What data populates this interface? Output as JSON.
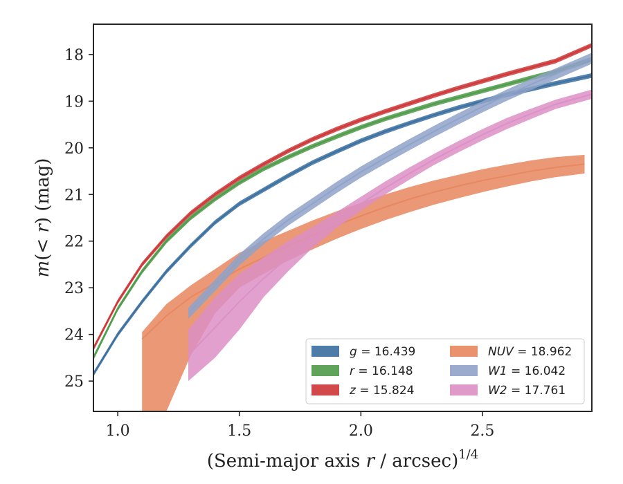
{
  "chart_data": {
    "type": "area",
    "title": "",
    "xlabel": "(Semi-major axis r / arcsec)",
    "xlabel_parts": {
      "pre": "(Semi-major axis ",
      "var": "r",
      "post": " / arcsec)",
      "sup": "1/4"
    },
    "ylabel": "m(<r) (mag)",
    "ylabel_parts": {
      "var": "m",
      "inner": "(< ",
      "inner_var": "r",
      "post": ") (mag)"
    },
    "xlim": [
      0.9,
      2.95
    ],
    "ylim": [
      25.65,
      17.35
    ],
    "y_inverted": true,
    "x_ticks": [
      1.0,
      1.5,
      2.0,
      2.5
    ],
    "x_tick_labels": [
      "1.0",
      "1.5",
      "2.0",
      "2.5"
    ],
    "y_ticks": [
      18,
      19,
      20,
      21,
      22,
      23,
      24,
      25
    ],
    "y_tick_labels": [
      "18",
      "19",
      "20",
      "21",
      "22",
      "23",
      "24",
      "25"
    ],
    "grid": false,
    "legend_position": "bottom-right",
    "legend_columns": 2,
    "series": [
      {
        "name": "g = 16.439",
        "label_var": "g",
        "label_value": "= 16.439",
        "color": "#3a6e9f",
        "x": [
          0.9,
          1.0,
          1.1,
          1.2,
          1.3,
          1.4,
          1.5,
          1.6,
          1.7,
          1.8,
          1.9,
          2.0,
          2.1,
          2.2,
          2.3,
          2.4,
          2.5,
          2.6,
          2.7,
          2.8,
          2.95
        ],
        "y": [
          24.85,
          24.0,
          23.3,
          22.65,
          22.1,
          21.6,
          21.2,
          20.9,
          20.6,
          20.32,
          20.08,
          19.85,
          19.65,
          19.47,
          19.3,
          19.14,
          19.0,
          18.86,
          18.74,
          18.62,
          18.45
        ],
        "band_halfwidth": 0.05
      },
      {
        "name": "r = 16.148",
        "label_var": "r",
        "label_value": "= 16.148",
        "color": "#4e9a48",
        "x": [
          0.9,
          1.0,
          1.1,
          1.2,
          1.3,
          1.4,
          1.5,
          1.6,
          1.7,
          1.8,
          1.9,
          2.0,
          2.1,
          2.2,
          2.3,
          2.4,
          2.5,
          2.6,
          2.7,
          2.8,
          2.95
        ],
        "y": [
          24.5,
          23.45,
          22.65,
          22.0,
          21.5,
          21.1,
          20.75,
          20.45,
          20.2,
          19.97,
          19.76,
          19.56,
          19.38,
          19.22,
          19.06,
          18.92,
          18.78,
          18.64,
          18.5,
          18.37,
          18.1
        ],
        "band_halfwidth": 0.05
      },
      {
        "name": "z = 15.824",
        "label_var": "z",
        "label_value": "= 15.824",
        "color": "#cc3536",
        "x": [
          0.9,
          1.0,
          1.1,
          1.2,
          1.3,
          1.4,
          1.5,
          1.6,
          1.7,
          1.8,
          1.9,
          2.0,
          2.1,
          2.2,
          2.3,
          2.4,
          2.5,
          2.6,
          2.7,
          2.8,
          2.95
        ],
        "y": [
          24.3,
          23.3,
          22.5,
          21.9,
          21.4,
          21.0,
          20.65,
          20.35,
          20.07,
          19.82,
          19.6,
          19.4,
          19.22,
          19.05,
          18.88,
          18.72,
          18.57,
          18.42,
          18.28,
          18.14,
          17.8
        ],
        "band_halfwidth": 0.05
      },
      {
        "name": "NUV = 18.962",
        "label_var": "NUV",
        "label_value": "= 18.962",
        "color": "#e8865e",
        "x": [
          1.1,
          1.2,
          1.3,
          1.4,
          1.5,
          1.6,
          1.7,
          1.8,
          1.9,
          2.0,
          2.1,
          2.2,
          2.3,
          2.4,
          2.5,
          2.6,
          2.7,
          2.8,
          2.92
        ],
        "y": [
          24.1,
          23.6,
          23.2,
          22.9,
          22.6,
          22.35,
          22.1,
          21.88,
          21.66,
          21.46,
          21.27,
          21.1,
          20.95,
          20.82,
          20.7,
          20.6,
          20.5,
          20.42,
          20.35
        ],
        "band_lower": [
          25.65,
          25.65,
          24.45,
          23.55,
          23.0,
          22.7,
          22.42,
          22.18,
          21.95,
          21.74,
          21.55,
          21.38,
          21.22,
          21.08,
          20.95,
          20.83,
          20.72,
          20.63,
          20.55
        ],
        "band_upper": [
          23.95,
          23.35,
          22.95,
          22.6,
          22.25,
          22.0,
          21.78,
          21.56,
          21.36,
          21.18,
          21.0,
          20.84,
          20.7,
          20.58,
          20.46,
          20.36,
          20.27,
          20.2,
          20.15
        ]
      },
      {
        "name": "W1 = 16.042",
        "label_var": "W1",
        "label_value": "= 16.042",
        "color": "#8fa2c8",
        "x": [
          1.29,
          1.4,
          1.5,
          1.6,
          1.7,
          1.8,
          1.9,
          2.0,
          2.1,
          2.2,
          2.3,
          2.4,
          2.5,
          2.6,
          2.7,
          2.8,
          2.95
        ],
        "y": [
          23.55,
          22.95,
          22.4,
          21.95,
          21.55,
          21.2,
          20.85,
          20.52,
          20.22,
          19.93,
          19.65,
          19.38,
          19.12,
          18.87,
          18.64,
          18.42,
          18.08
        ],
        "band_halfwidth": 0.12
      },
      {
        "name": "W2 = 17.761",
        "label_var": "W2",
        "label_value": "= 17.761",
        "color": "#dc8fc4",
        "x": [
          1.29,
          1.4,
          1.5,
          1.6,
          1.7,
          1.8,
          1.9,
          2.0,
          2.1,
          2.2,
          2.3,
          2.4,
          2.5,
          2.6,
          2.7,
          2.8,
          2.95
        ],
        "y": [
          24.45,
          23.85,
          23.3,
          22.8,
          22.35,
          21.95,
          21.55,
          21.2,
          20.86,
          20.55,
          20.25,
          19.98,
          19.72,
          19.48,
          19.27,
          19.07,
          18.85
        ],
        "band_lower": [
          25.0,
          24.5,
          23.9,
          23.2,
          22.65,
          22.15,
          21.72,
          21.35,
          21.0,
          20.68,
          20.37,
          20.1,
          19.84,
          19.6,
          19.38,
          19.17,
          18.95
        ],
        "band_upper": [
          23.9,
          23.2,
          22.7,
          22.35,
          22.0,
          21.7,
          21.38,
          21.05,
          20.72,
          20.42,
          20.13,
          19.86,
          19.6,
          19.36,
          19.16,
          18.97,
          18.75
        ]
      }
    ]
  }
}
